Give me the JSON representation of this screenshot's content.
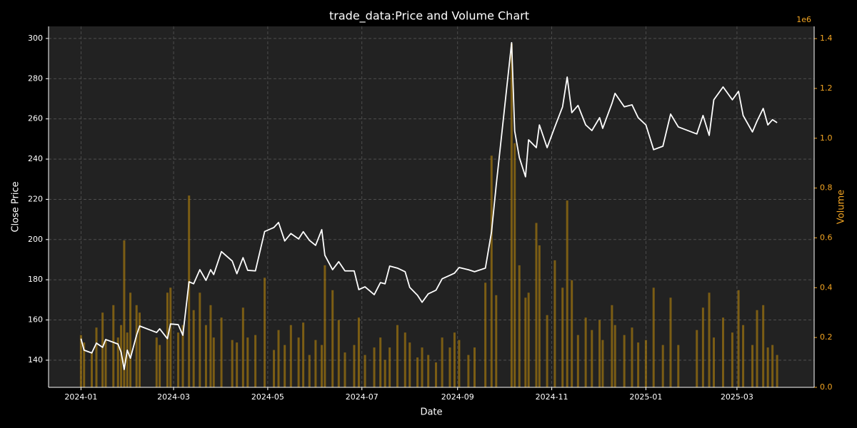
{
  "chart_data": {
    "type": "line-bar",
    "title": "trade_data:Price and Volume Chart",
    "x_label": "Date",
    "y_label": "Close Price",
    "y2_label": "Volume",
    "y2_offset_label": "1e6",
    "x": [
      "2024-01-01",
      "2024-01-03",
      "2024-01-08",
      "2024-01-11",
      "2024-01-15",
      "2024-01-17",
      "2024-01-22",
      "2024-01-25",
      "2024-01-27",
      "2024-01-29",
      "2024-01-31",
      "2024-02-02",
      "2024-02-06",
      "2024-02-08",
      "2024-02-19",
      "2024-02-21",
      "2024-02-26",
      "2024-02-28",
      "2024-03-04",
      "2024-03-07",
      "2024-03-11",
      "2024-03-14",
      "2024-03-18",
      "2024-03-22",
      "2024-03-25",
      "2024-03-27",
      "2024-04-01",
      "2024-04-08",
      "2024-04-11",
      "2024-04-15",
      "2024-04-18",
      "2024-04-23",
      "2024-04-29",
      "2024-05-05",
      "2024-05-08",
      "2024-05-12",
      "2024-05-16",
      "2024-05-21",
      "2024-05-24",
      "2024-05-28",
      "2024-06-01",
      "2024-06-05",
      "2024-06-07",
      "2024-06-12",
      "2024-06-16",
      "2024-06-20",
      "2024-06-26",
      "2024-06-29",
      "2024-07-03",
      "2024-07-09",
      "2024-07-13",
      "2024-07-16",
      "2024-07-19",
      "2024-07-24",
      "2024-07-29",
      "2024-08-01",
      "2024-08-06",
      "2024-08-09",
      "2024-08-13",
      "2024-08-18",
      "2024-08-22",
      "2024-08-27",
      "2024-08-30",
      "2024-09-02",
      "2024-09-08",
      "2024-09-12",
      "2024-09-19",
      "2024-09-23",
      "2024-09-26",
      "2024-10-06",
      "2024-10-08",
      "2024-10-11",
      "2024-10-15",
      "2024-10-17",
      "2024-10-22",
      "2024-10-24",
      "2024-10-29",
      "2024-11-03",
      "2024-11-08",
      "2024-11-11",
      "2024-11-14",
      "2024-11-18",
      "2024-11-23",
      "2024-11-27",
      "2024-12-02",
      "2024-12-04",
      "2024-12-10",
      "2024-12-12",
      "2024-12-18",
      "2024-12-23",
      "2024-12-27",
      "2025-01-01",
      "2025-01-06",
      "2025-01-12",
      "2025-01-17",
      "2025-01-22",
      "2025-02-03",
      "2025-02-07",
      "2025-02-11",
      "2025-02-14",
      "2025-02-20",
      "2025-02-26",
      "2025-03-02",
      "2025-03-05",
      "2025-03-11",
      "2025-03-14",
      "2025-03-18",
      "2025-03-21",
      "2025-03-24",
      "2025-03-27"
    ],
    "series": [
      {
        "type": "line",
        "axis": "y",
        "color": "#ffffff",
        "values": [
          150.7,
          145,
          143.6,
          148.5,
          146.4,
          150.3,
          148.9,
          148,
          144,
          135.4,
          145,
          141,
          152.4,
          157,
          153.8,
          155.6,
          150.7,
          158,
          157.7,
          152.4,
          179,
          178,
          185,
          179.7,
          185,
          182.6,
          194,
          189.3,
          183,
          191,
          184.7,
          184.4,
          204,
          206,
          208.5,
          199.3,
          203,
          200.3,
          203.9,
          199.6,
          197.1,
          204.9,
          192.2,
          185,
          189,
          184.4,
          184.4,
          175.1,
          176.5,
          172.6,
          178.6,
          178,
          186.8,
          185.8,
          184,
          176.2,
          172.3,
          168.8,
          173,
          174.8,
          180.5,
          182.2,
          183.3,
          186.1,
          185,
          184,
          185.8,
          203.9,
          226.9,
          297.9,
          253.9,
          240.8,
          231.2,
          249.6,
          245.7,
          257,
          245.7,
          256,
          266,
          280.8,
          263.1,
          266.7,
          257,
          254.2,
          260.6,
          255.3,
          267.7,
          272.7,
          266,
          267,
          260.6,
          257,
          244.7,
          246.4,
          262.4,
          256,
          252.5,
          261.7,
          251.8,
          269.5,
          275.9,
          269.5,
          273.7,
          261.7,
          253.5,
          258.9,
          265.2,
          257,
          259.6,
          258.1
        ]
      },
      {
        "type": "bar",
        "axis": "y2",
        "color": "#b8860b",
        "values": [
          210000,
          180000,
          140000,
          240000,
          300000,
          190000,
          330000,
          200000,
          250000,
          590000,
          220000,
          380000,
          330000,
          300000,
          200000,
          170000,
          380000,
          400000,
          220000,
          250000,
          770000,
          310000,
          380000,
          250000,
          330000,
          200000,
          280000,
          190000,
          180000,
          320000,
          200000,
          210000,
          440000,
          150000,
          230000,
          170000,
          250000,
          200000,
          260000,
          130000,
          190000,
          170000,
          490000,
          390000,
          270000,
          140000,
          170000,
          280000,
          130000,
          160000,
          200000,
          110000,
          160000,
          250000,
          220000,
          180000,
          120000,
          160000,
          130000,
          100000,
          200000,
          160000,
          220000,
          190000,
          130000,
          160000,
          420000,
          930000,
          370000,
          1380000,
          980000,
          490000,
          360000,
          380000,
          660000,
          570000,
          290000,
          510000,
          400000,
          750000,
          430000,
          210000,
          280000,
          230000,
          270000,
          190000,
          330000,
          250000,
          210000,
          240000,
          180000,
          190000,
          400000,
          170000,
          360000,
          170000,
          230000,
          320000,
          380000,
          200000,
          280000,
          220000,
          390000,
          250000,
          170000,
          310000,
          330000,
          160000,
          170000,
          130000
        ]
      }
    ],
    "xlim": [
      "2023-12-11",
      "2025-04-20"
    ],
    "xticks": [
      {
        "value": "2024-01-01",
        "label": "2024-01"
      },
      {
        "value": "2024-03-01",
        "label": "2024-03"
      },
      {
        "value": "2024-05-01",
        "label": "2024-05"
      },
      {
        "value": "2024-07-01",
        "label": "2024-07"
      },
      {
        "value": "2024-09-01",
        "label": "2024-09"
      },
      {
        "value": "2024-11-01",
        "label": "2024-11"
      },
      {
        "value": "2025-01-01",
        "label": "2025-01"
      },
      {
        "value": "2025-03-01",
        "label": "2025-03"
      }
    ],
    "ylim": [
      126.5,
      306
    ],
    "yticks": [
      140,
      160,
      180,
      200,
      220,
      240,
      260,
      280,
      300
    ],
    "y2lim": [
      0,
      1449000
    ],
    "y2ticks": [
      {
        "value": 0,
        "label": "0.0"
      },
      {
        "value": 200000,
        "label": "0.2"
      },
      {
        "value": 400000,
        "label": "0.4"
      },
      {
        "value": 600000,
        "label": "0.6"
      },
      {
        "value": 800000,
        "label": "0.8"
      },
      {
        "value": 1000000,
        "label": "1.0"
      },
      {
        "value": 1200000,
        "label": "1.2"
      },
      {
        "value": 1400000,
        "label": "1.4"
      }
    ],
    "y2_color": "#f5a623",
    "grid": true
  }
}
